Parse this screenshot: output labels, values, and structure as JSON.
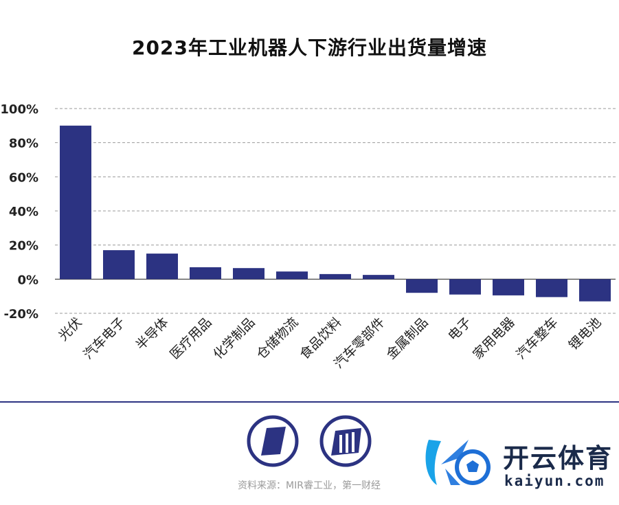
{
  "chart_data": {
    "type": "bar",
    "title": "2023年工业机器人下游行业出货量增速",
    "categories": [
      "光伏",
      "汽车电子",
      "半导体",
      "医疗用品",
      "化学制品",
      "仓储物流",
      "食品饮料",
      "汽车零部件",
      "金属制品",
      "电子",
      "家用电器",
      "汽车整车",
      "锂电池"
    ],
    "values": [
      90,
      17,
      15,
      7,
      6.5,
      4.5,
      3,
      2.5,
      -8,
      -9,
      -9.5,
      -10.5,
      -13
    ],
    "yticks": [
      "100%",
      "80%",
      "60%",
      "40%",
      "20%",
      "0%",
      "-20%"
    ],
    "ylim": [
      -20,
      100
    ],
    "grid": true,
    "bar_color": "#2c3382"
  },
  "footer": {
    "source": "资料来源：MIR睿工业，第一财经"
  },
  "watermark": {
    "brand_cn": "开云体育",
    "brand_en": "kaiyun.com"
  }
}
